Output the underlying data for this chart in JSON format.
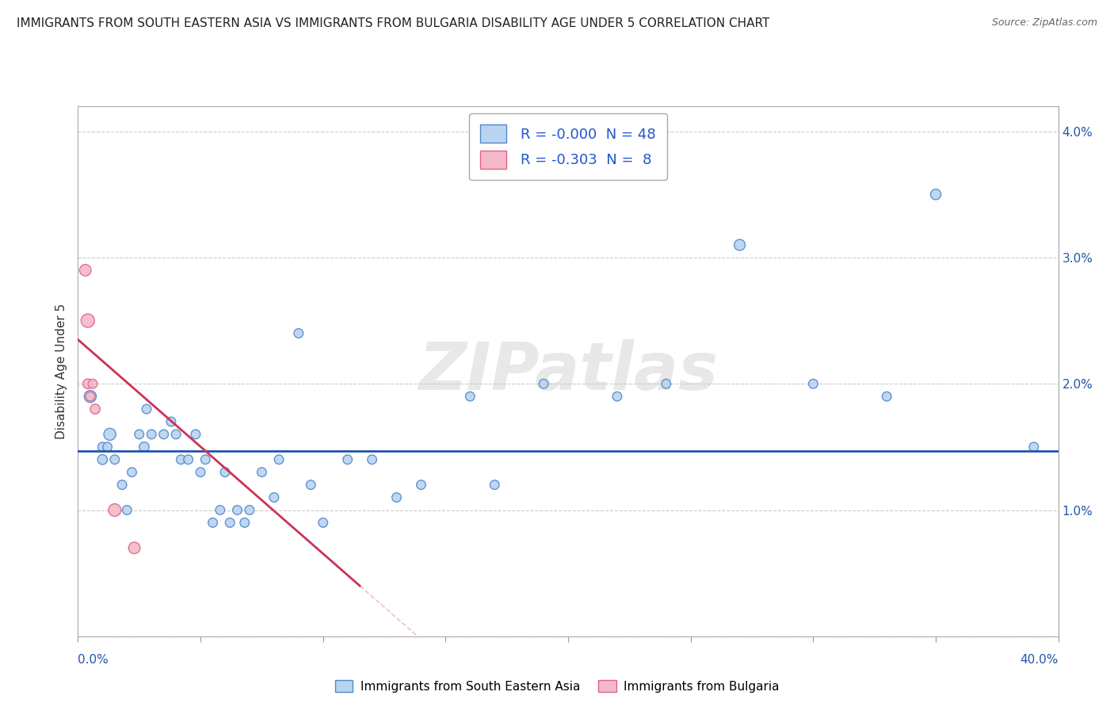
{
  "title": "IMMIGRANTS FROM SOUTH EASTERN ASIA VS IMMIGRANTS FROM BULGARIA DISABILITY AGE UNDER 5 CORRELATION CHART",
  "source": "Source: ZipAtlas.com",
  "ylabel": "Disability Age Under 5",
  "xlim": [
    0.0,
    0.4
  ],
  "ylim": [
    0.0,
    0.042
  ],
  "yticks": [
    0.0,
    0.01,
    0.02,
    0.03,
    0.04
  ],
  "ytick_labels_right": [
    "",
    "1.0%",
    "2.0%",
    "3.0%",
    "4.0%"
  ],
  "watermark": "ZIPatlas",
  "series1_color": "#b8d4f0",
  "series2_color": "#f5b8c8",
  "series1_edge": "#5588cc",
  "series2_edge": "#dd6688",
  "trendline1_color": "#2255aa",
  "trendline2_color": "#cc3355",
  "trendline2_dash_color": "#e8b0bc",
  "blue_points": [
    [
      0.005,
      0.019
    ],
    [
      0.01,
      0.014
    ],
    [
      0.01,
      0.015
    ],
    [
      0.012,
      0.015
    ],
    [
      0.013,
      0.016
    ],
    [
      0.015,
      0.014
    ],
    [
      0.018,
      0.012
    ],
    [
      0.02,
      0.01
    ],
    [
      0.022,
      0.013
    ],
    [
      0.025,
      0.016
    ],
    [
      0.027,
      0.015
    ],
    [
      0.028,
      0.018
    ],
    [
      0.03,
      0.016
    ],
    [
      0.035,
      0.016
    ],
    [
      0.038,
      0.017
    ],
    [
      0.04,
      0.016
    ],
    [
      0.042,
      0.014
    ],
    [
      0.045,
      0.014
    ],
    [
      0.048,
      0.016
    ],
    [
      0.05,
      0.013
    ],
    [
      0.052,
      0.014
    ],
    [
      0.055,
      0.009
    ],
    [
      0.058,
      0.01
    ],
    [
      0.06,
      0.013
    ],
    [
      0.062,
      0.009
    ],
    [
      0.065,
      0.01
    ],
    [
      0.068,
      0.009
    ],
    [
      0.07,
      0.01
    ],
    [
      0.075,
      0.013
    ],
    [
      0.08,
      0.011
    ],
    [
      0.082,
      0.014
    ],
    [
      0.09,
      0.024
    ],
    [
      0.095,
      0.012
    ],
    [
      0.1,
      0.009
    ],
    [
      0.11,
      0.014
    ],
    [
      0.12,
      0.014
    ],
    [
      0.13,
      0.011
    ],
    [
      0.14,
      0.012
    ],
    [
      0.16,
      0.019
    ],
    [
      0.17,
      0.012
    ],
    [
      0.19,
      0.02
    ],
    [
      0.22,
      0.019
    ],
    [
      0.24,
      0.02
    ],
    [
      0.27,
      0.031
    ],
    [
      0.3,
      0.02
    ],
    [
      0.33,
      0.019
    ],
    [
      0.35,
      0.035
    ],
    [
      0.39,
      0.015
    ]
  ],
  "blue_sizes": [
    120,
    80,
    70,
    70,
    120,
    70,
    70,
    70,
    70,
    70,
    80,
    70,
    70,
    70,
    70,
    70,
    70,
    70,
    70,
    70,
    70,
    70,
    70,
    70,
    70,
    70,
    70,
    70,
    70,
    70,
    70,
    70,
    70,
    70,
    70,
    70,
    70,
    70,
    70,
    70,
    70,
    70,
    70,
    100,
    70,
    70,
    90,
    70
  ],
  "pink_points": [
    [
      0.003,
      0.029
    ],
    [
      0.004,
      0.025
    ],
    [
      0.004,
      0.02
    ],
    [
      0.005,
      0.019
    ],
    [
      0.006,
      0.02
    ],
    [
      0.007,
      0.018
    ],
    [
      0.015,
      0.01
    ],
    [
      0.023,
      0.007
    ]
  ],
  "pink_sizes": [
    110,
    150,
    80,
    70,
    70,
    80,
    130,
    110
  ],
  "blue_trend_y": 0.0147,
  "pink_trend_x0": 0.0,
  "pink_trend_y0": 0.0235,
  "pink_trend_x1": 0.115,
  "pink_trend_y1": 0.004
}
